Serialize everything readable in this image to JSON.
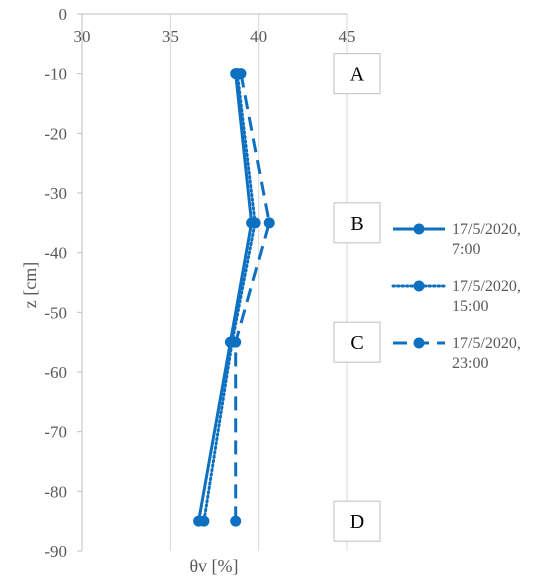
{
  "chart_data": {
    "type": "line",
    "title": "",
    "xlabel": "θv [%]",
    "ylabel": "z [cm]",
    "xlim": [
      30,
      45
    ],
    "ylim": [
      -90,
      0
    ],
    "x_ticks": [
      "30",
      "35",
      "40",
      "45"
    ],
    "y_ticks": [
      "0",
      "-10",
      "-20",
      "-30",
      "-40",
      "-50",
      "-60",
      "-70",
      "-80",
      "-90"
    ],
    "grid": "vertical",
    "x_axis_position": "top",
    "legend_position": "right",
    "series": [
      {
        "name": "17/5/2020, 7:00",
        "style": "solid",
        "points": [
          [
            38.7,
            -10
          ],
          [
            39.6,
            -35
          ],
          [
            38.4,
            -55
          ],
          [
            36.6,
            -85
          ]
        ]
      },
      {
        "name": "17/5/2020, 15:00",
        "style": "dotted",
        "points": [
          [
            38.8,
            -10
          ],
          [
            39.8,
            -35
          ],
          [
            38.5,
            -55
          ],
          [
            36.9,
            -85
          ]
        ]
      },
      {
        "name": "17/5/2020, 23:00",
        "style": "dashed",
        "points": [
          [
            39.0,
            -10
          ],
          [
            40.6,
            -35
          ],
          [
            38.7,
            -55
          ],
          [
            38.7,
            -85
          ]
        ]
      }
    ],
    "region_labels": [
      {
        "text": "A",
        "z": -10
      },
      {
        "text": "B",
        "z": -35
      },
      {
        "text": "C",
        "z": -55
      },
      {
        "text": "D",
        "z": -85
      }
    ],
    "color": "#0e70c0"
  }
}
